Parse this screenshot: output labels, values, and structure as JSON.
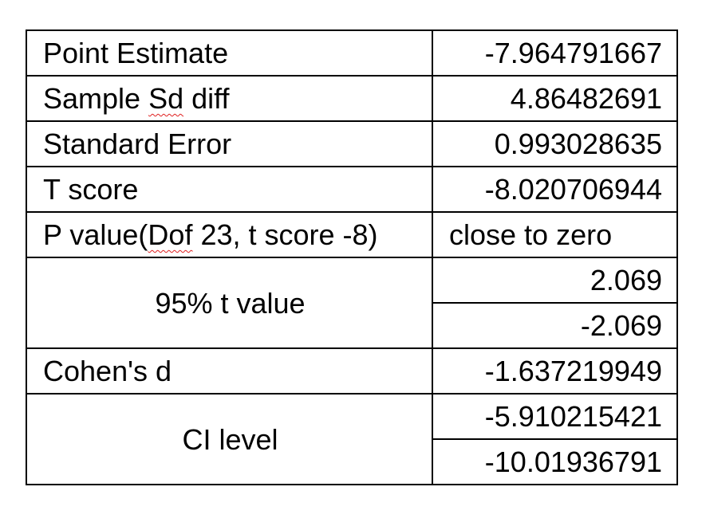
{
  "rows": [
    {
      "label": "Point Estimate",
      "value": "-7.964791667"
    },
    {
      "label_parts": [
        "Sample ",
        "Sd",
        " diff"
      ],
      "value": "4.86482691"
    },
    {
      "label": "Standard Error",
      "value": "0.993028635"
    },
    {
      "label": "T score",
      "value": "-8.020706944"
    },
    {
      "label_parts": [
        "P value(",
        "Dof",
        " 23, t score -8)"
      ],
      "value": "close to zero"
    },
    {
      "label": "95% t value",
      "values": [
        "2.069",
        "-2.069"
      ]
    },
    {
      "label": "Cohen's d",
      "value": "-1.637219949"
    },
    {
      "label": "CI level",
      "values": [
        "-5.910215421",
        "-10.01936791"
      ]
    }
  ]
}
